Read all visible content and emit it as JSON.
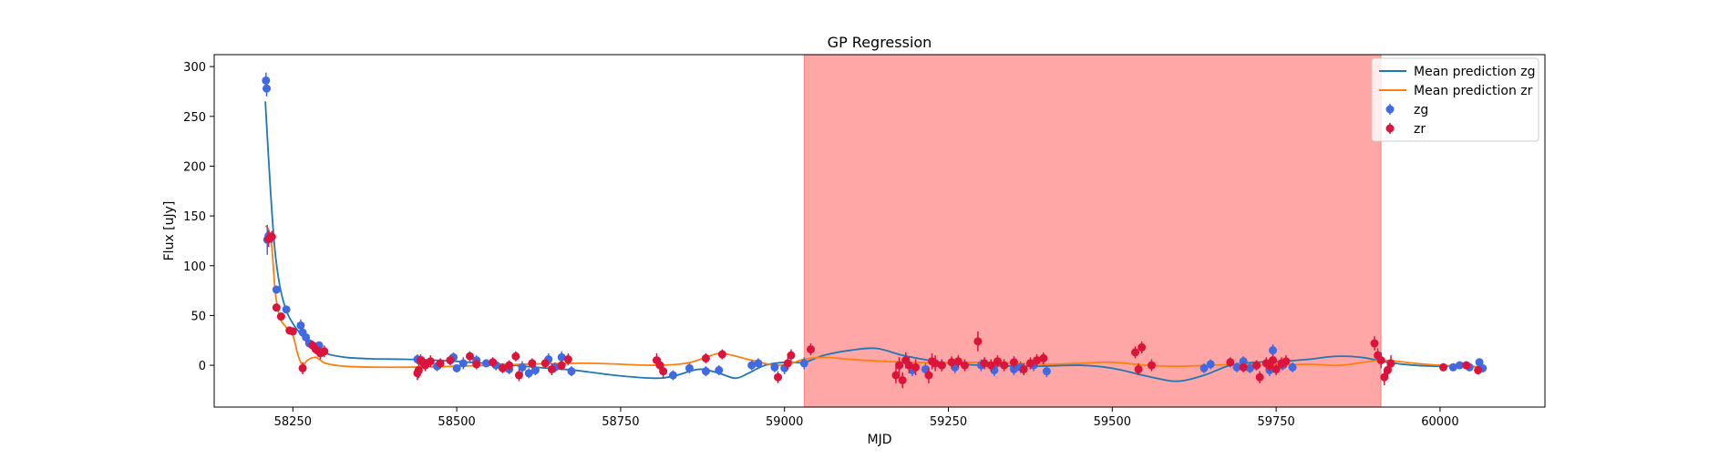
{
  "chart_data": {
    "type": "scatter",
    "title": "GP Regression",
    "xlabel": "MJD",
    "ylabel": "Flux [uJy]",
    "xlim": [
      58130,
      60160
    ],
    "ylim": [
      -42,
      312
    ],
    "x_ticks": [
      58250,
      58500,
      58750,
      59000,
      59250,
      59500,
      59750,
      60000
    ],
    "y_ticks": [
      0,
      50,
      100,
      150,
      200,
      250,
      300
    ],
    "grid": false,
    "legend_position": "top-right",
    "shaded_region": {
      "x_start": 59030,
      "x_end": 59910,
      "color": "#ff0000"
    },
    "series": [
      {
        "name": "Mean prediction zg",
        "kind": "line",
        "color": "#1f77b4",
        "x": [
          58208,
          58215,
          58222,
          58230,
          58240,
          58250,
          58260,
          58270,
          58282,
          58300,
          58330,
          58370,
          58420,
          58470,
          58520,
          58570,
          58620,
          58680,
          58740,
          58800,
          58830,
          58870,
          58900,
          58925,
          58945,
          58970,
          59000,
          59030,
          59060,
          59100,
          59140,
          59180,
          59220,
          59250,
          59300,
          59380,
          59450,
          59500,
          59560,
          59600,
          59640,
          59680,
          59720,
          59760,
          59800,
          59840,
          59880,
          59920,
          59960,
          60000,
          60040,
          60065
        ],
        "y": [
          265,
          185,
          120,
          80,
          55,
          42,
          33,
          26,
          20,
          12,
          8,
          6.5,
          6,
          5,
          3,
          1,
          -2,
          -5,
          -10,
          -13,
          -11,
          -4,
          -8,
          -13,
          -8,
          0,
          3,
          3,
          10,
          15,
          17,
          10,
          5,
          2,
          0,
          -1,
          0,
          -3,
          -12,
          -16,
          -10,
          0,
          3,
          4,
          6,
          9,
          8,
          3,
          0,
          -1,
          -1,
          -2
        ]
      },
      {
        "name": "Mean prediction zr",
        "kind": "line",
        "color": "#ff7f0e",
        "x": [
          58208,
          58213,
          58218,
          58223,
          58230,
          58240,
          58250,
          58258,
          58265,
          58272,
          58285,
          58300,
          58330,
          58400,
          58500,
          58600,
          58700,
          58800,
          58850,
          58880,
          58900,
          58920,
          58950,
          58985,
          59010,
          59030,
          59060,
          59100,
          59150,
          59200,
          59250,
          59300,
          59350,
          59400,
          59450,
          59500,
          59550,
          59600,
          59650,
          59700,
          59750,
          59800,
          59850,
          59910,
          59960,
          60000,
          60065
        ],
        "y": [
          140,
          136,
          118,
          75,
          48,
          38,
          30,
          10,
          0,
          5,
          8,
          2,
          -1,
          -2,
          -1,
          1,
          2,
          0,
          2,
          8,
          12,
          10,
          5,
          0,
          2,
          6,
          8,
          6,
          4,
          3,
          2,
          3,
          2,
          1,
          2,
          3,
          0,
          -1,
          0,
          1,
          0,
          1,
          0,
          5,
          2,
          0,
          -2
        ]
      },
      {
        "name": "zg",
        "kind": "errorbar",
        "color": "#4169e1",
        "x": [
          58209,
          58210,
          58211,
          58213,
          58225,
          58240,
          58262,
          58265,
          58270,
          58275,
          58280,
          58285,
          58290,
          58440,
          58450,
          58470,
          58495,
          58500,
          58510,
          58530,
          58545,
          58560,
          58580,
          58600,
          58610,
          58620,
          58640,
          58650,
          58660,
          58675,
          58830,
          58855,
          58880,
          58900,
          58950,
          58960,
          58985,
          59000,
          59030,
          59175,
          59185,
          59195,
          59215,
          59240,
          59260,
          59300,
          59320,
          59350,
          59360,
          59380,
          59400,
          59640,
          59650,
          59690,
          59700,
          59710,
          59720,
          59740,
          59745,
          59760,
          59775,
          60020,
          60030,
          60045,
          60060,
          60065
        ],
        "y": [
          286,
          278,
          126,
          130,
          76,
          56,
          40,
          33,
          28,
          22,
          20,
          18,
          20,
          6,
          2,
          -1,
          8,
          -3,
          2,
          5,
          2,
          0,
          -4,
          -2,
          -8,
          -5,
          6,
          -2,
          8,
          -6,
          -10,
          -3,
          -6,
          -5,
          0,
          2,
          -2,
          -3,
          2,
          0,
          5,
          -5,
          -4,
          0,
          -2,
          0,
          -5,
          -4,
          -2,
          0,
          -6,
          -3,
          1,
          -2,
          4,
          -3,
          0,
          -5,
          15,
          0,
          -2,
          -2,
          0,
          -2,
          3,
          -3
        ],
        "yerr": [
          8,
          8,
          15,
          6,
          4,
          4,
          6,
          5,
          5,
          4,
          4,
          4,
          4,
          5,
          6,
          5,
          5,
          4,
          6,
          5,
          4,
          5,
          5,
          6,
          5,
          5,
          6,
          5,
          6,
          5,
          5,
          5,
          5,
          5,
          5,
          5,
          5,
          6,
          6,
          8,
          8,
          6,
          6,
          6,
          6,
          6,
          6,
          6,
          6,
          6,
          6,
          5,
          5,
          5,
          5,
          5,
          5,
          6,
          6,
          5,
          5,
          4,
          4,
          4,
          4,
          4
        ]
      },
      {
        "name": "zr",
        "kind": "errorbar",
        "color": "#dc143c",
        "x": [
          58213,
          58218,
          58225,
          58232,
          58245,
          58250,
          58265,
          58280,
          58285,
          58292,
          58298,
          58440,
          58442,
          58445,
          58448,
          58452,
          58460,
          58475,
          58490,
          58520,
          58530,
          58555,
          58570,
          58580,
          58590,
          58595,
          58615,
          58635,
          58645,
          58660,
          58670,
          58805,
          58810,
          58815,
          58880,
          58905,
          58990,
          59005,
          59010,
          59040,
          59170,
          59175,
          59180,
          59185,
          59190,
          59200,
          59220,
          59225,
          59230,
          59240,
          59255,
          59265,
          59275,
          59295,
          59305,
          59315,
          59325,
          59335,
          59350,
          59365,
          59375,
          59385,
          59395,
          59535,
          59540,
          59545,
          59560,
          59680,
          59700,
          59720,
          59725,
          59735,
          59740,
          59745,
          59750,
          59758,
          59765,
          59900,
          59905,
          59910,
          59915,
          59920,
          59925,
          60005,
          60040,
          60058
        ],
        "y": [
          127,
          129,
          58,
          49,
          35,
          34,
          -3,
          20,
          16,
          12,
          14,
          -8,
          -5,
          5,
          3,
          0,
          4,
          2,
          5,
          9,
          1,
          3,
          -3,
          0,
          9,
          -10,
          2,
          2,
          -4,
          0,
          6,
          5,
          0,
          -6,
          7,
          11,
          -12,
          2,
          10,
          16,
          -10,
          0,
          -15,
          5,
          0,
          -2,
          -10,
          4,
          2,
          0,
          3,
          4,
          0,
          24,
          2,
          0,
          4,
          0,
          3,
          -4,
          2,
          5,
          7,
          13,
          -4,
          18,
          0,
          3,
          -2,
          0,
          -12,
          2,
          0,
          5,
          -4,
          2,
          4,
          22,
          10,
          5,
          -12,
          -5,
          2,
          -2,
          0,
          -5
        ],
        "yerr": [
          8,
          6,
          4,
          4,
          4,
          4,
          6,
          5,
          5,
          6,
          6,
          7,
          8,
          6,
          6,
          6,
          6,
          5,
          5,
          5,
          5,
          5,
          5,
          5,
          5,
          6,
          5,
          5,
          6,
          5,
          6,
          7,
          7,
          7,
          5,
          5,
          6,
          6,
          6,
          6,
          8,
          8,
          8,
          8,
          8,
          8,
          8,
          8,
          8,
          6,
          6,
          6,
          6,
          10,
          6,
          6,
          6,
          6,
          6,
          6,
          6,
          6,
          6,
          6,
          6,
          6,
          6,
          5,
          5,
          5,
          6,
          6,
          6,
          6,
          6,
          6,
          6,
          7,
          7,
          8,
          8,
          8,
          8,
          4,
          4,
          4
        ]
      }
    ]
  }
}
